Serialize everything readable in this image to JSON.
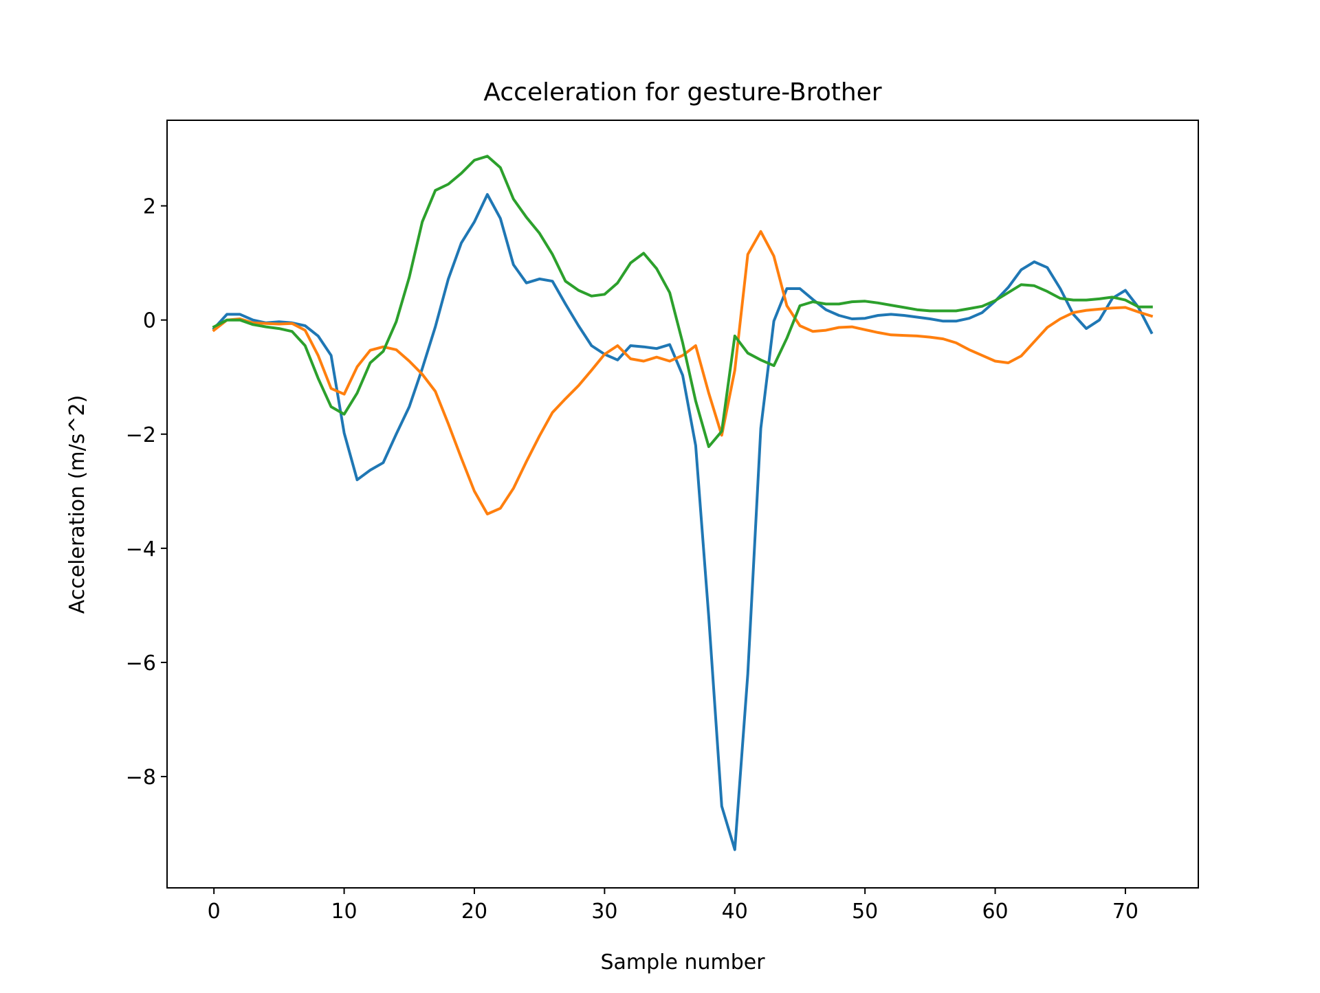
{
  "chart_data": {
    "type": "line",
    "title": "Acceleration for gesture-Brother",
    "xlabel": "Sample number",
    "ylabel": "Acceleration (m/s^2)",
    "xlim": [
      -3.6,
      75.6
    ],
    "ylim": [
      -9.95,
      3.5
    ],
    "xticks": [
      0,
      10,
      20,
      30,
      40,
      50,
      60,
      70
    ],
    "yticks": [
      -8,
      -6,
      -4,
      -2,
      0,
      2
    ],
    "grid": false,
    "legend": "none",
    "x": [
      0,
      1,
      2,
      3,
      4,
      5,
      6,
      7,
      8,
      9,
      10,
      11,
      12,
      13,
      14,
      15,
      16,
      17,
      18,
      19,
      20,
      21,
      22,
      23,
      24,
      25,
      26,
      27,
      28,
      29,
      30,
      31,
      32,
      33,
      34,
      35,
      36,
      37,
      38,
      39,
      40,
      41,
      42,
      43,
      44,
      45,
      46,
      47,
      48,
      49,
      50,
      51,
      52,
      53,
      54,
      55,
      56,
      57,
      58,
      59,
      60,
      61,
      62,
      63,
      64,
      65,
      66,
      67,
      68,
      69,
      70,
      71,
      72
    ],
    "series": [
      {
        "color": "#1f77b4",
        "values": [
          -0.15,
          0.1,
          0.1,
          0.0,
          -0.05,
          -0.03,
          -0.05,
          -0.1,
          -0.28,
          -0.62,
          -1.98,
          -2.8,
          -2.63,
          -2.5,
          -2.0,
          -1.52,
          -0.85,
          -0.12,
          0.72,
          1.35,
          1.72,
          2.2,
          1.78,
          0.97,
          0.65,
          0.72,
          0.68,
          0.28,
          -0.1,
          -0.45,
          -0.6,
          -0.7,
          -0.45,
          -0.47,
          -0.5,
          -0.43,
          -0.97,
          -2.2,
          -5.2,
          -8.52,
          -9.28,
          -6.2,
          -1.9,
          -0.02,
          0.55,
          0.55,
          0.36,
          0.18,
          0.08,
          0.02,
          0.03,
          0.08,
          0.1,
          0.08,
          0.05,
          0.02,
          -0.02,
          -0.02,
          0.03,
          0.13,
          0.33,
          0.57,
          0.88,
          1.02,
          0.92,
          0.55,
          0.1,
          -0.15,
          0.0,
          0.38,
          0.52,
          0.22,
          -0.22
        ]
      },
      {
        "color": "#ff7f0e",
        "values": [
          -0.18,
          0.0,
          0.02,
          -0.05,
          -0.06,
          -0.07,
          -0.06,
          -0.18,
          -0.62,
          -1.2,
          -1.3,
          -0.82,
          -0.53,
          -0.47,
          -0.52,
          -0.72,
          -0.95,
          -1.25,
          -1.82,
          -2.42,
          -3.0,
          -3.4,
          -3.3,
          -2.95,
          -2.48,
          -2.03,
          -1.62,
          -1.38,
          -1.15,
          -0.88,
          -0.6,
          -0.45,
          -0.68,
          -0.72,
          -0.65,
          -0.72,
          -0.62,
          -0.45,
          -1.28,
          -2.02,
          -0.88,
          1.15,
          1.55,
          1.12,
          0.25,
          -0.1,
          -0.2,
          -0.18,
          -0.13,
          -0.12,
          -0.17,
          -0.22,
          -0.26,
          -0.27,
          -0.28,
          -0.3,
          -0.33,
          -0.4,
          -0.52,
          -0.62,
          -0.72,
          -0.75,
          -0.63,
          -0.38,
          -0.13,
          0.02,
          0.13,
          0.17,
          0.19,
          0.21,
          0.22,
          0.14,
          0.07
        ]
      },
      {
        "color": "#2ca02c",
        "values": [
          -0.12,
          0.0,
          0.0,
          -0.08,
          -0.12,
          -0.15,
          -0.2,
          -0.45,
          -1.02,
          -1.52,
          -1.65,
          -1.28,
          -0.75,
          -0.55,
          -0.03,
          0.75,
          1.72,
          2.27,
          2.38,
          2.57,
          2.8,
          2.87,
          2.67,
          2.12,
          1.8,
          1.52,
          1.15,
          0.68,
          0.52,
          0.42,
          0.45,
          0.65,
          1.0,
          1.17,
          0.9,
          0.48,
          -0.4,
          -1.42,
          -2.22,
          -1.95,
          -0.28,
          -0.58,
          -0.7,
          -0.8,
          -0.32,
          0.25,
          0.32,
          0.28,
          0.28,
          0.32,
          0.33,
          0.3,
          0.26,
          0.22,
          0.18,
          0.16,
          0.16,
          0.16,
          0.2,
          0.24,
          0.34,
          0.48,
          0.62,
          0.6,
          0.5,
          0.38,
          0.35,
          0.35,
          0.37,
          0.4,
          0.35,
          0.23,
          0.23
        ]
      }
    ]
  }
}
